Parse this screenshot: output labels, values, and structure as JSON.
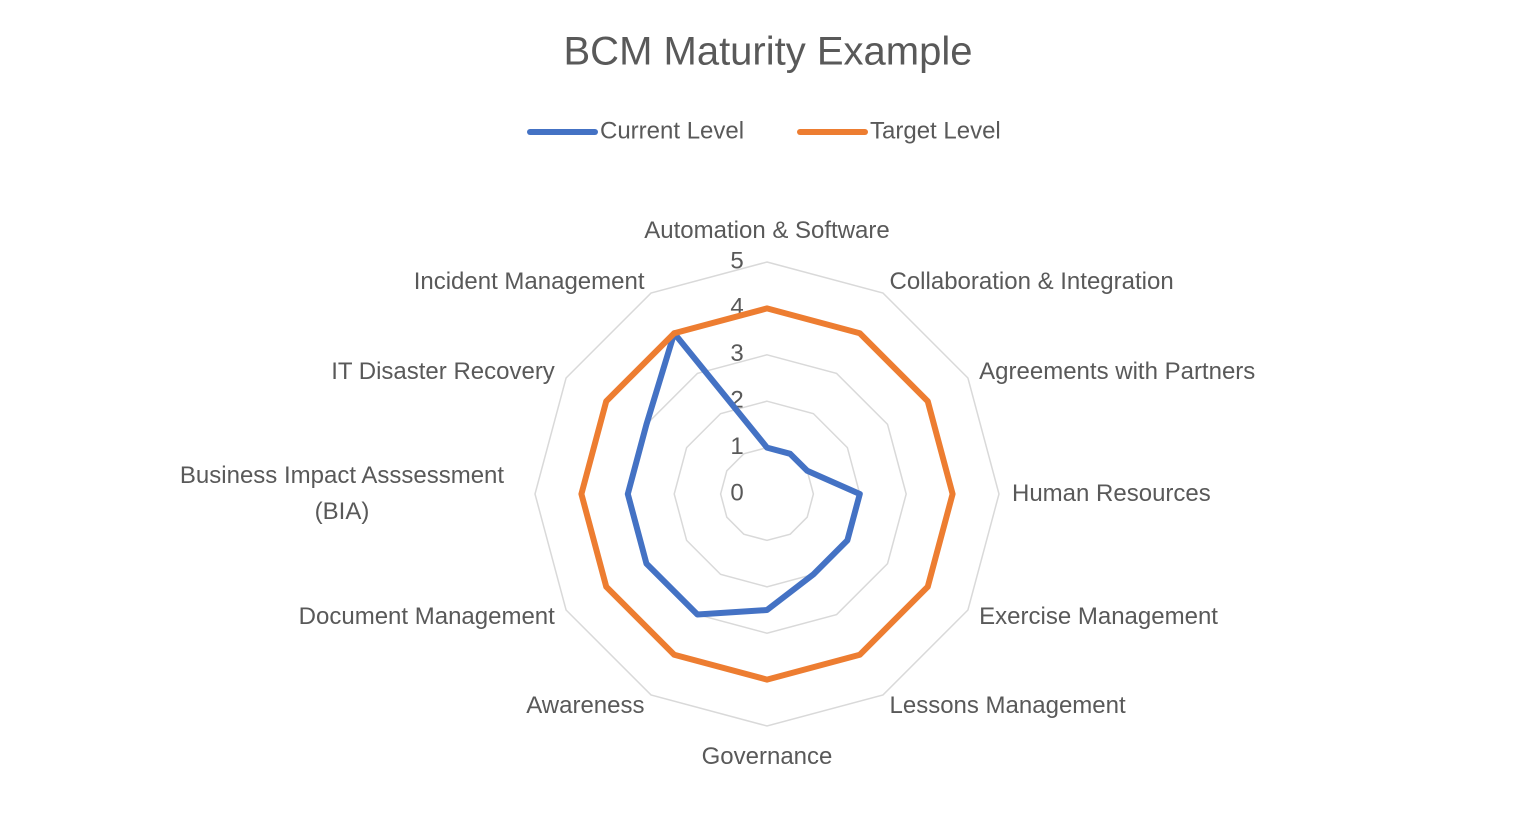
{
  "chart_data": {
    "type": "radar",
    "title": "BCM Maturity Example",
    "categories": [
      "Automation & Software",
      "Collaboration & Integration",
      "Agreements with Partners",
      "Human Resources",
      "Exercise Management",
      "Lessons Management",
      "Governance",
      "Awareness",
      "Document Management",
      "Business Impact Asssessment (BIA)",
      "IT Disaster Recovery",
      "Incident Management"
    ],
    "series": [
      {
        "name": "Current Level",
        "color": "#4472c4",
        "values": [
          1,
          1,
          1,
          2,
          2,
          2,
          2.5,
          3,
          3,
          3,
          3,
          4
        ]
      },
      {
        "name": "Target Level",
        "color": "#ed7d31",
        "values": [
          4,
          4,
          4,
          4,
          4,
          4,
          4,
          4,
          4,
          4,
          4,
          4
        ]
      }
    ],
    "ylim": [
      0,
      5
    ],
    "yticks": [
      0,
      1,
      2,
      3,
      4,
      5
    ],
    "grid": true,
    "legend": "top"
  }
}
